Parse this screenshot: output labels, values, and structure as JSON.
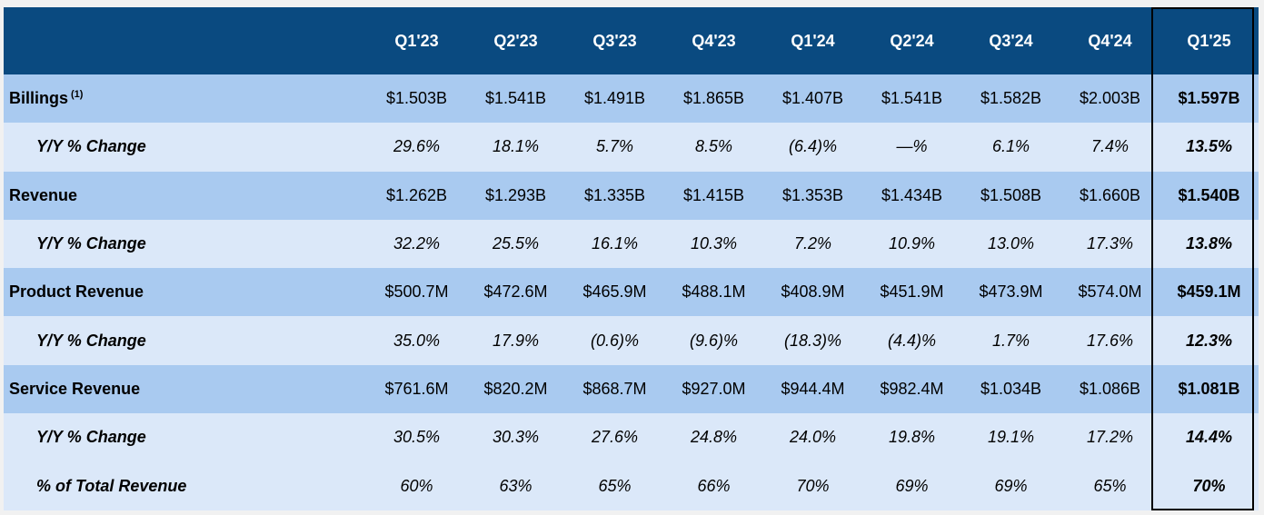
{
  "columns": [
    "Q1'23",
    "Q2'23",
    "Q3'23",
    "Q4'23",
    "Q1'24",
    "Q2'24",
    "Q3'24",
    "Q4'24",
    "Q1'25"
  ],
  "rows": [
    {
      "label": "Billings",
      "footnote": "(1)",
      "type": "main",
      "values": [
        "$1.503B",
        "$1.541B",
        "$1.491B",
        "$1.865B",
        "$1.407B",
        "$1.541B",
        "$1.582B",
        "$2.003B",
        "$1.597B"
      ]
    },
    {
      "label": "Y/Y % Change",
      "type": "sub",
      "values": [
        "29.6%",
        "18.1%",
        "5.7%",
        "8.5%",
        "(6.4)%",
        "—%",
        "6.1%",
        "7.4%",
        "13.5%"
      ]
    },
    {
      "label": "Revenue",
      "type": "main",
      "values": [
        "$1.262B",
        "$1.293B",
        "$1.335B",
        "$1.415B",
        "$1.353B",
        "$1.434B",
        "$1.508B",
        "$1.660B",
        "$1.540B"
      ]
    },
    {
      "label": "Y/Y % Change",
      "type": "sub",
      "values": [
        "32.2%",
        "25.5%",
        "16.1%",
        "10.3%",
        "7.2%",
        "10.9%",
        "13.0%",
        "17.3%",
        "13.8%"
      ]
    },
    {
      "label": "Product Revenue",
      "type": "main",
      "values": [
        "$500.7M",
        "$472.6M",
        "$465.9M",
        "$488.1M",
        "$408.9M",
        "$451.9M",
        "$473.9M",
        "$574.0M",
        "$459.1M"
      ]
    },
    {
      "label": "Y/Y % Change",
      "type": "sub",
      "values": [
        "35.0%",
        "17.9%",
        "(0.6)%",
        "(9.6)%",
        "(18.3)%",
        "(4.4)%",
        "1.7%",
        "17.6%",
        "12.3%"
      ]
    },
    {
      "label": "Service Revenue",
      "type": "main",
      "values": [
        "$761.6M",
        "$820.2M",
        "$868.7M",
        "$927.0M",
        "$944.4M",
        "$982.4M",
        "$1.034B",
        "$1.086B",
        "$1.081B"
      ]
    },
    {
      "label": "Y/Y % Change",
      "type": "sub",
      "values": [
        "30.5%",
        "30.3%",
        "27.6%",
        "24.8%",
        "24.0%",
        "19.8%",
        "19.1%",
        "17.2%",
        "14.4%"
      ]
    },
    {
      "label": "% of Total Revenue",
      "type": "sub",
      "values": [
        "60%",
        "63%",
        "65%",
        "66%",
        "70%",
        "69%",
        "69%",
        "65%",
        "70%"
      ]
    }
  ],
  "colors": {
    "header_bg": "#0a4a80",
    "main_row_bg": "#a9caf0",
    "sub_row_bg": "#dbe8f9",
    "highlight_border": "#000000"
  }
}
